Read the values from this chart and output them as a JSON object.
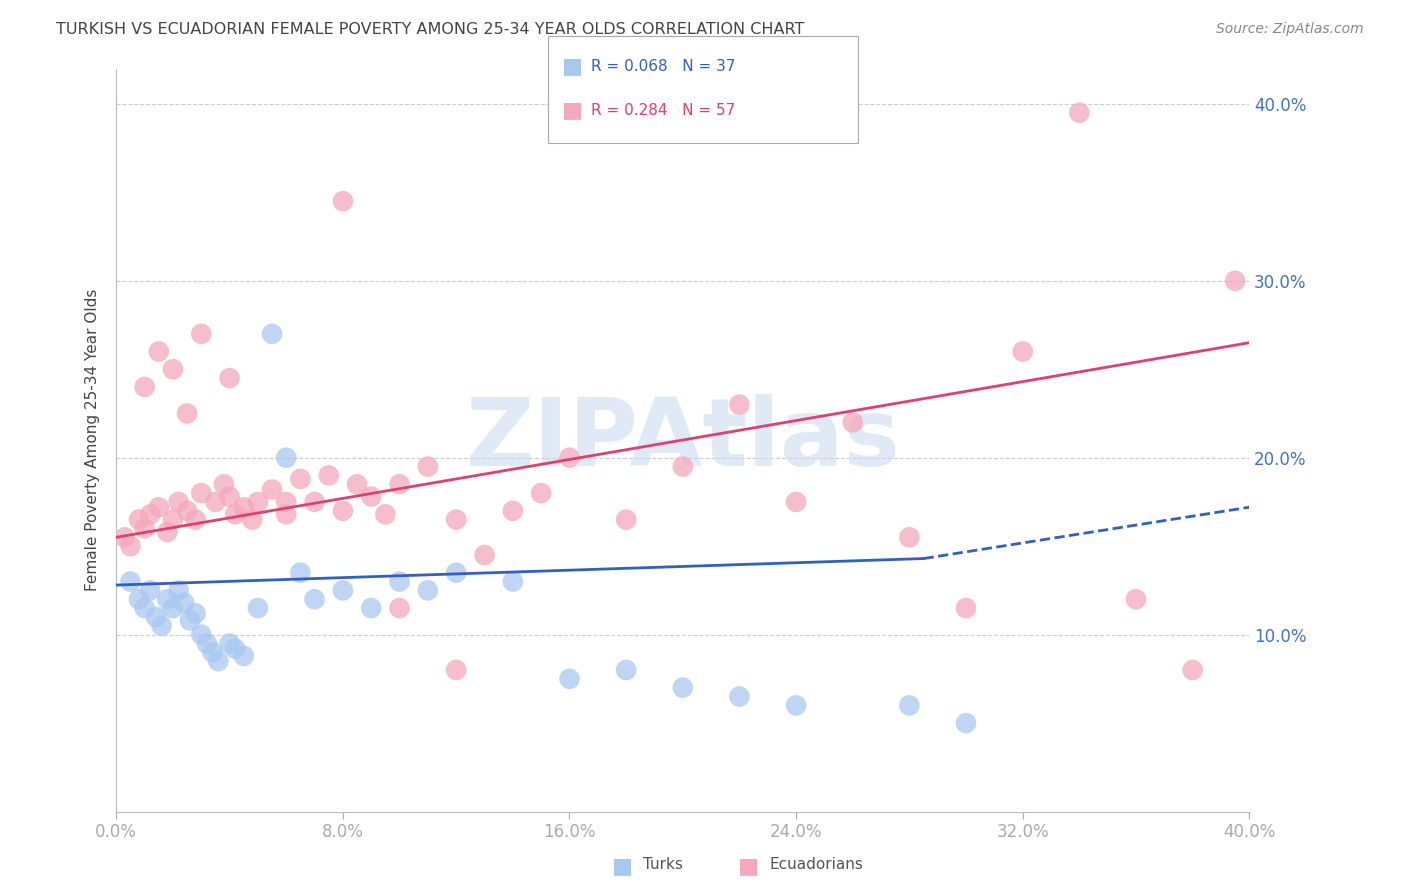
{
  "title": "TURKISH VS ECUADORIAN FEMALE POVERTY AMONG 25-34 YEAR OLDS CORRELATION CHART",
  "source": "Source: ZipAtlas.com",
  "ylabel": "Female Poverty Among 25-34 Year Olds",
  "xmin": 0.0,
  "xmax": 0.4,
  "ymin": 0.0,
  "ymax": 0.42,
  "yticks": [
    0.0,
    0.1,
    0.2,
    0.3,
    0.4
  ],
  "xticks": [
    0.0,
    0.08,
    0.16,
    0.24,
    0.32,
    0.4
  ],
  "ytick_labels_right": [
    "",
    "10.0%",
    "20.0%",
    "30.0%",
    "40.0%"
  ],
  "xtick_labels": [
    "0.0%",
    "8.0%",
    "16.0%",
    "24.0%",
    "32.0%",
    "40.0%"
  ],
  "turks_color": "#a8c8f0",
  "ecuadorians_color": "#f4a8bc",
  "turks_line_color": "#3060c0",
  "ecuadorians_line_color": "#e04070",
  "legend_turks_R": "R = 0.068",
  "legend_turks_N": "N = 37",
  "legend_ecuadorians_R": "R = 0.284",
  "legend_ecuadorians_N": "N = 57",
  "background_color": "#ffffff",
  "grid_color": "#cccccc",
  "watermark": "ZIPAtlas",
  "watermark_color": "#c8d8f0",
  "title_color": "#444444",
  "axis_label_color": "#444444",
  "tick_label_color": "#4472c4",
  "turks_x": [
    0.005,
    0.008,
    0.01,
    0.012,
    0.014,
    0.016,
    0.018,
    0.02,
    0.022,
    0.024,
    0.026,
    0.028,
    0.03,
    0.032,
    0.034,
    0.036,
    0.04,
    0.042,
    0.045,
    0.05,
    0.055,
    0.06,
    0.065,
    0.07,
    0.08,
    0.09,
    0.1,
    0.11,
    0.12,
    0.14,
    0.16,
    0.18,
    0.2,
    0.22,
    0.24,
    0.28,
    0.3
  ],
  "turks_y": [
    0.13,
    0.12,
    0.115,
    0.125,
    0.11,
    0.105,
    0.12,
    0.115,
    0.125,
    0.118,
    0.108,
    0.112,
    0.1,
    0.095,
    0.09,
    0.085,
    0.095,
    0.092,
    0.088,
    0.115,
    0.27,
    0.2,
    0.135,
    0.12,
    0.125,
    0.115,
    0.13,
    0.125,
    0.135,
    0.13,
    0.075,
    0.08,
    0.07,
    0.065,
    0.06,
    0.06,
    0.05
  ],
  "ecuadorians_x": [
    0.003,
    0.005,
    0.008,
    0.01,
    0.012,
    0.015,
    0.018,
    0.02,
    0.022,
    0.025,
    0.028,
    0.03,
    0.035,
    0.038,
    0.04,
    0.042,
    0.045,
    0.048,
    0.05,
    0.055,
    0.06,
    0.065,
    0.07,
    0.075,
    0.08,
    0.085,
    0.09,
    0.095,
    0.1,
    0.11,
    0.12,
    0.13,
    0.14,
    0.15,
    0.16,
    0.18,
    0.2,
    0.22,
    0.24,
    0.26,
    0.28,
    0.3,
    0.32,
    0.34,
    0.36,
    0.38,
    0.395,
    0.01,
    0.015,
    0.02,
    0.025,
    0.03,
    0.04,
    0.06,
    0.08,
    0.1,
    0.12
  ],
  "ecuadorians_y": [
    0.155,
    0.15,
    0.165,
    0.16,
    0.168,
    0.172,
    0.158,
    0.165,
    0.175,
    0.17,
    0.165,
    0.18,
    0.175,
    0.185,
    0.178,
    0.168,
    0.172,
    0.165,
    0.175,
    0.182,
    0.168,
    0.188,
    0.175,
    0.19,
    0.17,
    0.185,
    0.178,
    0.168,
    0.185,
    0.195,
    0.165,
    0.145,
    0.17,
    0.18,
    0.2,
    0.165,
    0.195,
    0.23,
    0.175,
    0.22,
    0.155,
    0.115,
    0.26,
    0.395,
    0.12,
    0.08,
    0.3,
    0.24,
    0.26,
    0.25,
    0.225,
    0.27,
    0.245,
    0.175,
    0.345,
    0.115,
    0.08
  ],
  "turks_line_x0": 0.0,
  "turks_line_x_solid_end": 0.285,
  "turks_line_x_dash_end": 0.4,
  "turks_line_y0": 0.128,
  "turks_line_y_solid_end": 0.143,
  "turks_line_y_dash_end": 0.172,
  "ecu_line_x0": 0.0,
  "ecu_line_x_end": 0.4,
  "ecu_line_y0": 0.155,
  "ecu_line_y_end": 0.265
}
